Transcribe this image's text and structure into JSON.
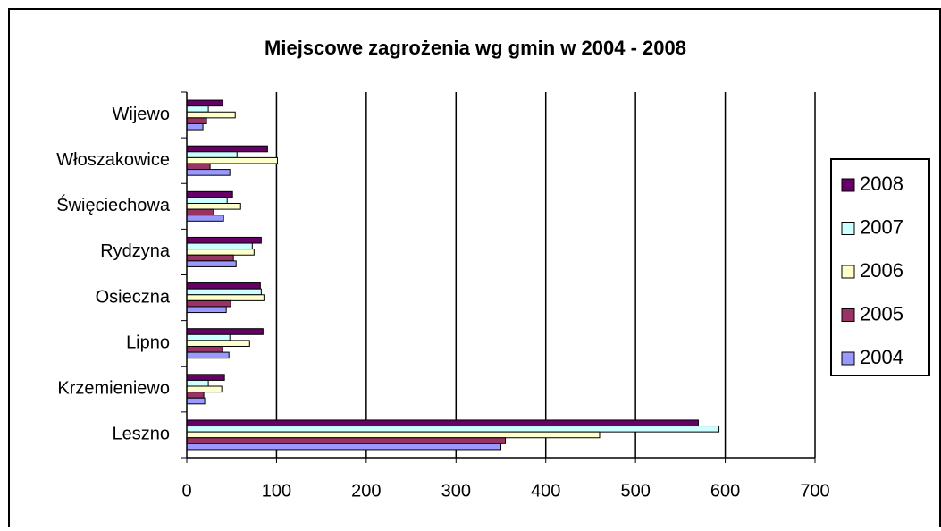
{
  "chart_data": {
    "type": "bar",
    "orientation": "horizontal",
    "title": "Miejscowe zagrożenia wg gmin w 2004 - 2008",
    "categories": [
      "Leszno",
      "Krzemieniewo",
      "Lipno",
      "Osieczna",
      "Rydzyna",
      "Święciechowa",
      "Włoszakowice",
      "Wijewo"
    ],
    "series": [
      {
        "name": "2008",
        "color": "#660066",
        "values": [
          570,
          42,
          85,
          82,
          83,
          51,
          90,
          40
        ]
      },
      {
        "name": "2007",
        "color": "#ccffff",
        "values": [
          593,
          24,
          48,
          83,
          73,
          45,
          56,
          24
        ]
      },
      {
        "name": "2006",
        "color": "#ffffcc",
        "values": [
          460,
          39,
          70,
          86,
          75,
          60,
          101,
          54
        ]
      },
      {
        "name": "2005",
        "color": "#993366",
        "values": [
          355,
          19,
          40,
          49,
          52,
          30,
          26,
          22
        ]
      },
      {
        "name": "2004",
        "color": "#9999ff",
        "values": [
          350,
          20,
          47,
          44,
          55,
          41,
          48,
          18
        ]
      }
    ],
    "xlim": [
      0,
      700
    ],
    "xticks": [
      0,
      100,
      200,
      300,
      400,
      500,
      600,
      700
    ],
    "grid": true,
    "legend": "right"
  }
}
